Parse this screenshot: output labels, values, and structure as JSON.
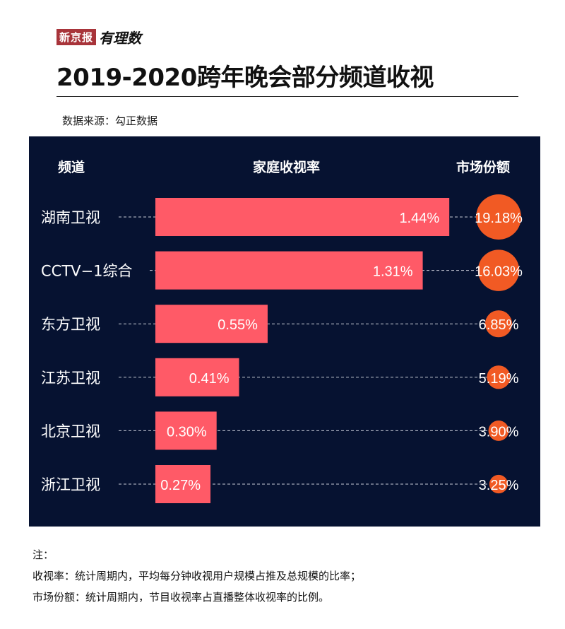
{
  "brand": {
    "name": "新京报",
    "sub_brand": "有理数"
  },
  "title": "2019-2020跨年晚会部分频道收视",
  "source": "数据来源：勾正数据",
  "headers": {
    "channel": "频道",
    "rating": "家庭收视率",
    "share": "市场份额"
  },
  "colors": {
    "panel": "#061231",
    "bar": "#ff5a67",
    "circle": "#f15a24"
  },
  "chart_data": {
    "type": "bar",
    "title": "2019-2020跨年晚会部分频道收视",
    "categories": [
      "湖南卫视",
      "CCTV−1综合",
      "东方卫视",
      "江苏卫视",
      "北京卫视",
      "浙江卫视"
    ],
    "series": [
      {
        "name": "家庭收视率",
        "unit": "%",
        "values": [
          1.44,
          1.31,
          0.55,
          0.41,
          0.3,
          0.27
        ]
      },
      {
        "name": "市场份额",
        "unit": "%",
        "values": [
          19.18,
          16.03,
          6.85,
          5.19,
          3.9,
          3.25
        ]
      }
    ]
  },
  "notes": {
    "heading": "注：",
    "rating_def": "收视率：统计周期内，平均每分钟收视用户规模占推及总规模的比率；",
    "share_def": "市场份额：统计周期内，节目收视率占直播整体收视率的比例。"
  }
}
